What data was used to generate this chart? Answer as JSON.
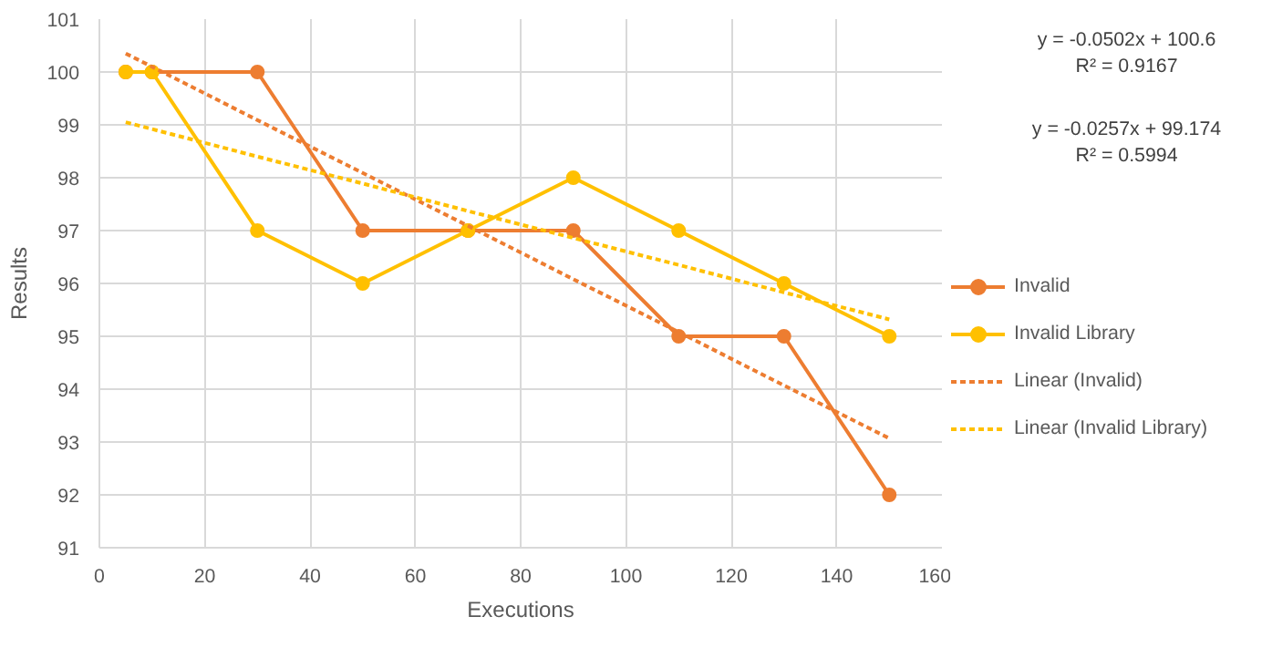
{
  "chart_data": {
    "type": "line",
    "xlabel": "Executions",
    "ylabel": "Results",
    "x": [
      5,
      10,
      30,
      50,
      70,
      90,
      110,
      130,
      150
    ],
    "series": [
      {
        "name": "Invalid",
        "color": "#ed7d31",
        "values": [
          100,
          100,
          100,
          97,
          97,
          97,
          95,
          95,
          92
        ],
        "marker": "circle"
      },
      {
        "name": "Invalid Library",
        "color": "#ffc000",
        "values": [
          100,
          100,
          97,
          96,
          97,
          98,
          97,
          96,
          95
        ],
        "marker": "circle"
      },
      {
        "name": "Linear (Invalid)",
        "color": "#ed7d31",
        "values": [
          100.35,
          100.1,
          99.09,
          98.09,
          97.09,
          96.08,
          95.08,
          94.07,
          93.07
        ],
        "line_style": "dotted",
        "marker": "none"
      },
      {
        "name": "Linear (Invalid Library)",
        "color": "#ffc000",
        "values": [
          99.05,
          98.92,
          98.4,
          97.89,
          97.37,
          96.86,
          96.35,
          95.83,
          95.32
        ],
        "line_style": "dotted",
        "marker": "none"
      }
    ],
    "annotations": [
      "y = -0.0502x + 100.6",
      "R² = 0.9167",
      "y = -0.0257x + 99.174",
      "R² = 0.5994"
    ],
    "xlim": [
      0,
      160
    ],
    "xticks": [
      0,
      20,
      40,
      60,
      80,
      100,
      120,
      140,
      160
    ],
    "ylim": [
      91,
      101
    ],
    "yticks": [
      91,
      92,
      93,
      94,
      95,
      96,
      97,
      98,
      99,
      100,
      101
    ],
    "grid": true,
    "legend": "right"
  }
}
